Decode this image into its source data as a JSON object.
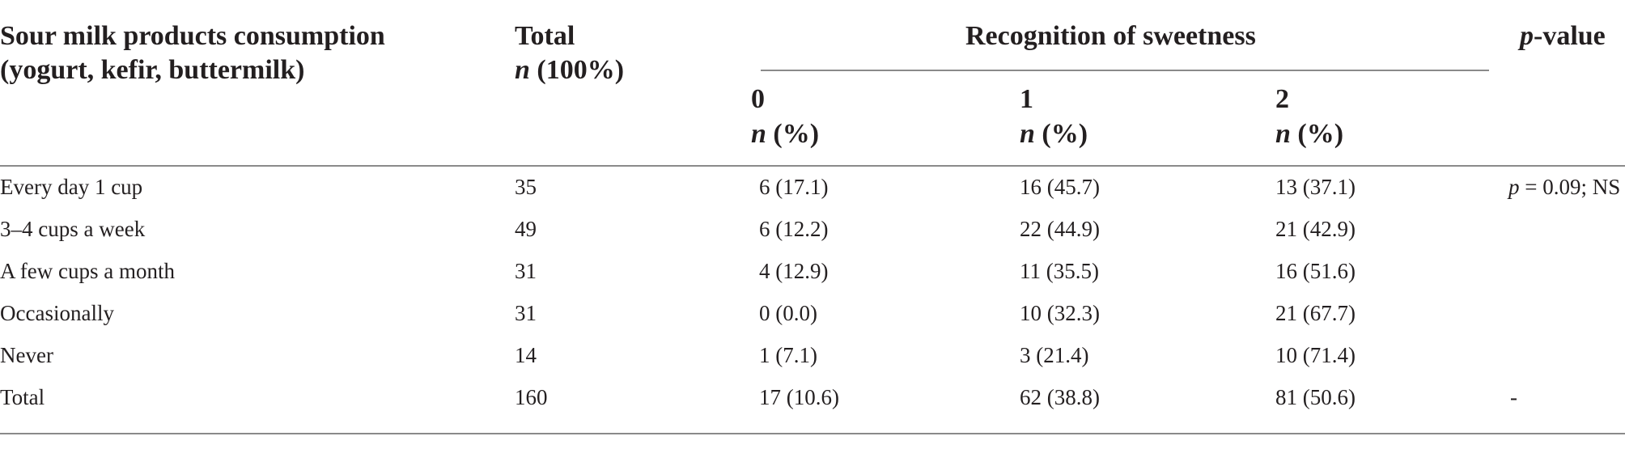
{
  "table": {
    "header": {
      "col1": {
        "line1": "Sour milk products consumption",
        "line2": "(yogurt, kefir, buttermilk)"
      },
      "total": {
        "line1": "Total",
        "n_symbol": "n",
        "line2_suffix": " (100%)"
      },
      "group_label": "Recognition of sweetness",
      "subcols": [
        {
          "level": "0",
          "n_symbol": "n",
          "suffix": " (%)"
        },
        {
          "level": "1",
          "n_symbol": "n",
          "suffix": " (%)"
        },
        {
          "level": "2",
          "n_symbol": "n",
          "suffix": " (%)"
        }
      ],
      "pvalue": {
        "p_symbol": "p",
        "suffix": "-value"
      }
    },
    "rows": [
      {
        "label": "Every day 1 cup",
        "total": "35",
        "c0": "6 (17.1)",
        "c1": "16 (45.7)",
        "c2": "13 (37.1)"
      },
      {
        "label": "3–4 cups a week",
        "total": "49",
        "c0": "6 (12.2)",
        "c1": "22 (44.9)",
        "c2": "21 (42.9)"
      },
      {
        "label": "A few cups a month",
        "total": "31",
        "c0": "4 (12.9)",
        "c1": "11 (35.5)",
        "c2": "16 (51.6)"
      },
      {
        "label": "Occasionally",
        "total": "31",
        "c0": "0 (0.0)",
        "c1": "10 (32.3)",
        "c2": "21 (67.7)"
      },
      {
        "label": "Never",
        "total": "14",
        "c0": "1 (7.1)",
        "c1": "3 (21.4)",
        "c2": "10 (71.4)"
      },
      {
        "label": "Total",
        "total": "160",
        "c0": "17 (10.6)",
        "c1": "62 (38.8)",
        "c2": "81 (50.6)"
      }
    ],
    "pvalue_result": {
      "p_symbol": "p",
      "text": " = 0.09; NS"
    },
    "pvalue_total": "-"
  }
}
